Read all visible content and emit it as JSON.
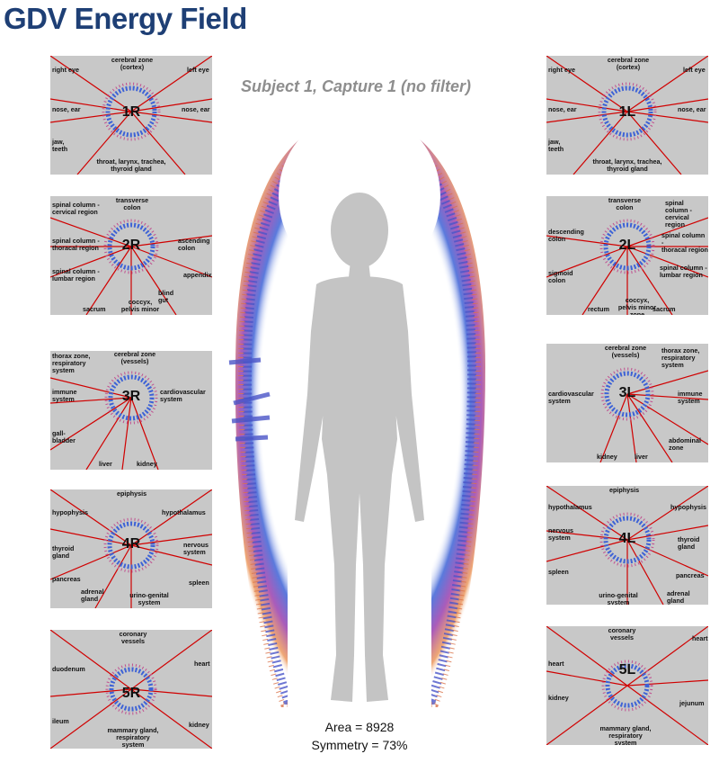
{
  "title": "GDV Energy Field",
  "subtitle": "Subject 1, Capture 1 (no filter)",
  "stats": {
    "area": "Area = 8928",
    "symmetry": "Symmetry = 73%"
  },
  "colors": {
    "title": "#1e3f75",
    "panel_bg": "#c8c8c8",
    "ray": "#d00000",
    "aura_outer": "#e8823a",
    "aura_inner": "#3d62d6"
  },
  "panels": {
    "p1R": {
      "code": "1R",
      "labels": [
        "cerebral zone\n(cortex)",
        "right eye",
        "left eye",
        "nose, ear",
        "nose, ear",
        "jaw,\nteeth",
        "throat, larynx, trachea,\nthyroid gland"
      ]
    },
    "p2R": {
      "code": "2R",
      "labels": [
        "transverse\ncolon",
        "spinal column -\ncervical region",
        "spinal column -\nthoracal region",
        "ascending\ncolon",
        "spinal column -\nlumbar region",
        "appendix",
        "blind\ngut",
        "sacrum",
        "coccyx,\npelvis minor zone"
      ]
    },
    "p3R": {
      "code": "3R",
      "labels": [
        "cerebral zone\n(vessels)",
        "thorax zone,\nrespiratory\nsystem",
        "immune\nsystem",
        "cardiovascular\nsystem",
        "gall-\nbladder",
        "liver",
        "kidney"
      ]
    },
    "p4R": {
      "code": "4R",
      "labels": [
        "epiphysis",
        "hypophysis",
        "hypothalamus",
        "nervous\nsystem",
        "thyroid\ngland",
        "pancreas",
        "spleen",
        "adrenal\ngland",
        "urino-genital\nsystem"
      ]
    },
    "p5R": {
      "code": "5R",
      "labels": [
        "coronary\nvessels",
        "heart",
        "duodenum",
        "ileum",
        "kidney",
        "mammary gland,\nrespiratory\nsystem"
      ]
    },
    "p1L": {
      "code": "1L",
      "labels": [
        "cerebral zone\n(cortex)",
        "right eye",
        "left eye",
        "nose, ear",
        "nose, ear",
        "jaw,\nteeth",
        "throat, larynx, trachea,\nthyroid gland"
      ]
    },
    "p2L": {
      "code": "2L",
      "labels": [
        "transverse\ncolon",
        "spinal column -\ncervical region",
        "descending\ncolon",
        "spinal column -\nthoracal region",
        "sigmoid\ncolon",
        "spinal column -\nlumbar region",
        "rectum",
        "sacrum",
        "coccyx,\npelvis minor zone"
      ]
    },
    "p3L": {
      "code": "3L",
      "labels": [
        "cerebral zone\n(vessels)",
        "thorax zone,\nrespiratory\nsystem",
        "cardiovascular\nsystem",
        "immune\nsystem",
        "abdominal\nzone",
        "kidney",
        "liver"
      ]
    },
    "p4L": {
      "code": "4L",
      "labels": [
        "epiphysis",
        "hypothalamus",
        "hypophysis",
        "nervous\nsystem",
        "thyroid\ngland",
        "pancreas",
        "spleen",
        "urino-genital\nsystem",
        "adrenal\ngland"
      ]
    },
    "p5L": {
      "code": "5L",
      "labels": [
        "coronary\nvessels",
        "heart",
        "heart",
        "kidney",
        "jejunum",
        "mammary gland,\nrespiratory\nsystem"
      ]
    }
  }
}
